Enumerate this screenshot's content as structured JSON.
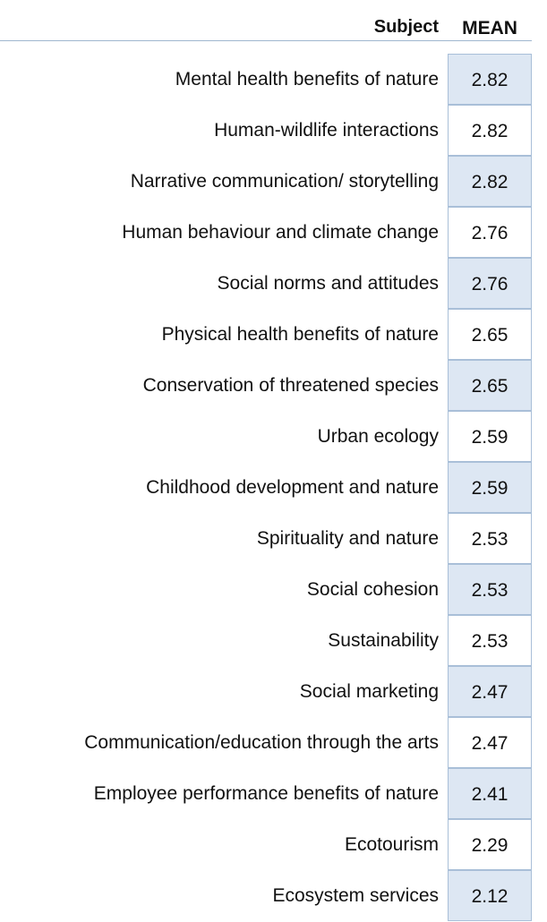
{
  "header": {
    "subject": "Subject",
    "mean": "MEAN"
  },
  "chart_data": {
    "type": "table",
    "columns": [
      "Subject",
      "MEAN"
    ],
    "rows": [
      {
        "subject": "Mental health benefits of nature",
        "mean": "2.82"
      },
      {
        "subject": "Human-wildlife interactions",
        "mean": "2.82"
      },
      {
        "subject": "Narrative communication/ storytelling",
        "mean": "2.82"
      },
      {
        "subject": "Human behaviour and climate change",
        "mean": "2.76"
      },
      {
        "subject": "Social norms and attitudes",
        "mean": "2.76"
      },
      {
        "subject": "Physical health benefits of nature",
        "mean": "2.65"
      },
      {
        "subject": "Conservation of threatened species",
        "mean": "2.65"
      },
      {
        "subject": "Urban ecology",
        "mean": "2.59"
      },
      {
        "subject": "Childhood development and nature",
        "mean": "2.59"
      },
      {
        "subject": "Spirituality and nature",
        "mean": "2.53"
      },
      {
        "subject": "Social cohesion",
        "mean": "2.53"
      },
      {
        "subject": "Sustainability",
        "mean": "2.53"
      },
      {
        "subject": "Social marketing",
        "mean": "2.47"
      },
      {
        "subject": "Communication/education through the arts",
        "mean": "2.47"
      },
      {
        "subject": "Employee performance benefits of nature",
        "mean": "2.41"
      },
      {
        "subject": "Ecotourism",
        "mean": "2.29"
      },
      {
        "subject": "Ecosystem services",
        "mean": "2.12"
      }
    ],
    "colors": {
      "shaded_cell": "#dde7f3",
      "cell_border": "#a9bfd8"
    }
  }
}
